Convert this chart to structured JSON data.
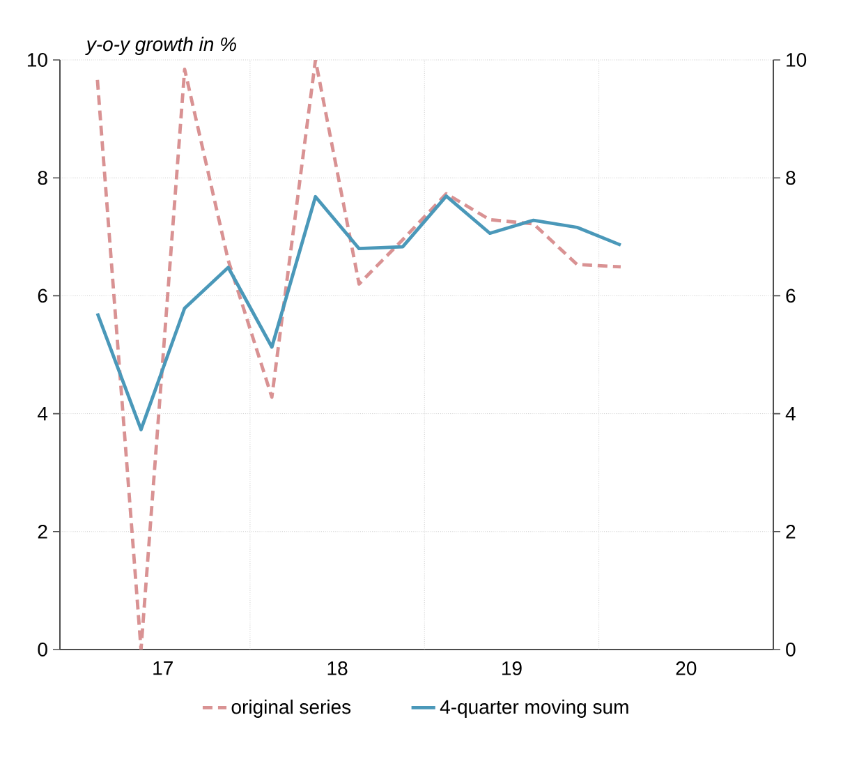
{
  "chart_data": {
    "type": "line",
    "ylabel": "y-o-y growth in %",
    "x": [
      16.625,
      16.875,
      17.125,
      17.375,
      17.625,
      17.875,
      18.125,
      18.375,
      18.625,
      18.875,
      19.125,
      19.375,
      19.625
    ],
    "xlim": [
      16.41,
      20.5
    ],
    "xticks": [
      17,
      {
        "value": 17.5,
        "label": null
      },
      18,
      {
        "value": 18.5,
        "label": null
      },
      19,
      {
        "value": 19.5,
        "label": null
      },
      20
    ],
    "ylim": [
      0,
      10
    ],
    "yticks": [
      0,
      2,
      4,
      6,
      8,
      10
    ],
    "y2lim": [
      0,
      10
    ],
    "y2ticks": [
      0,
      2,
      4,
      6,
      8,
      10
    ],
    "series": [
      {
        "name": "original series",
        "color": "#d99293",
        "line_style": "dashed",
        "values": [
          9.66,
          0,
          9.84,
          6.6,
          4.28,
          10.0,
          6.2,
          6.95,
          7.73,
          7.29,
          7.22,
          6.53,
          6.49
        ]
      },
      {
        "name": "4-quarter moving sum",
        "color": "#4a98b9",
        "line_style": "solid",
        "values": [
          5.7,
          3.73,
          5.79,
          6.48,
          5.13,
          7.68,
          6.8,
          6.83,
          7.69,
          7.06,
          7.28,
          7.16,
          6.86
        ]
      }
    ],
    "grid": true,
    "legend": "bottom",
    "marker": "none"
  }
}
